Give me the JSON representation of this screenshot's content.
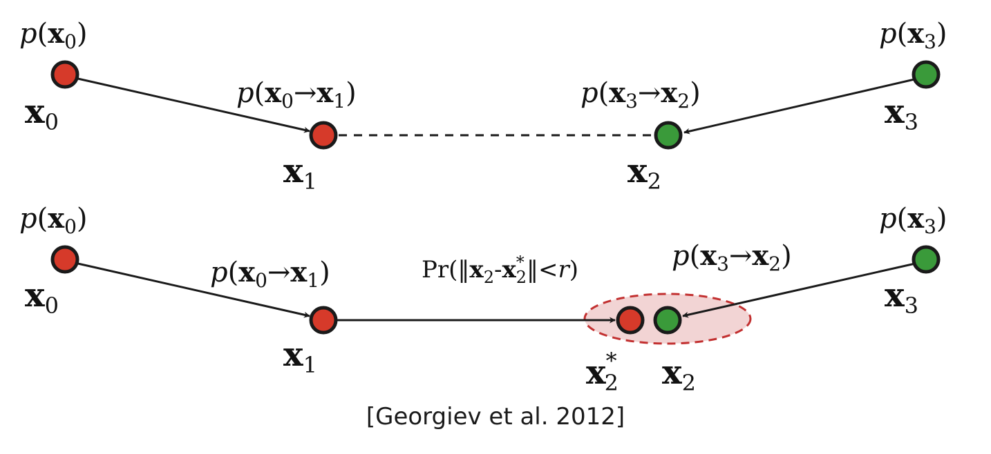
{
  "colors": {
    "red_node": "#d63a2a",
    "green_node": "#3a9a3a",
    "stroke": "#1a1a1a",
    "region_fill": "#f2d4d4",
    "region_stroke": "#c23030"
  },
  "top": {
    "p_x0": {
      "fn": "p",
      "var": "x",
      "sub": "0"
    },
    "p_x3": {
      "fn": "p",
      "var": "x",
      "sub": "3"
    },
    "p_x0_x1": {
      "fn": "p",
      "var": "x",
      "sub_a": "0",
      "arrow": "→",
      "sub_b": "1"
    },
    "p_x3_x2": {
      "fn": "p",
      "var": "x",
      "sub_a": "3",
      "arrow": "→",
      "sub_b": "2"
    },
    "node_x0": {
      "var": "x",
      "sub": "0"
    },
    "node_x1": {
      "var": "x",
      "sub": "1"
    },
    "node_x2": {
      "var": "x",
      "sub": "2"
    },
    "node_x3": {
      "var": "x",
      "sub": "3"
    }
  },
  "bottom": {
    "p_x0": {
      "fn": "p",
      "var": "x",
      "sub": "0"
    },
    "p_x3": {
      "fn": "p",
      "var": "x",
      "sub": "3"
    },
    "p_x0_x1": {
      "fn": "p",
      "var": "x",
      "sub_a": "0",
      "arrow": "→",
      "sub_b": "1"
    },
    "p_x3_x2": {
      "fn": "p",
      "var": "x",
      "sub_a": "3",
      "arrow": "→",
      "sub_b": "2"
    },
    "pr": {
      "fn": "Pr",
      "open": "(‖",
      "var": "x",
      "sub": "2",
      "minus": "-",
      "star": "*",
      "close": "‖<",
      "r": "r",
      "end": ")"
    },
    "node_x0": {
      "var": "x",
      "sub": "0"
    },
    "node_x1": {
      "var": "x",
      "sub": "1"
    },
    "node_x2star": {
      "var": "x",
      "sub": "2",
      "sup": "*"
    },
    "node_x2": {
      "var": "x",
      "sub": "2"
    },
    "node_x3": {
      "var": "x",
      "sub": "3"
    }
  },
  "caption": "[Georgiev et al. 2012]"
}
